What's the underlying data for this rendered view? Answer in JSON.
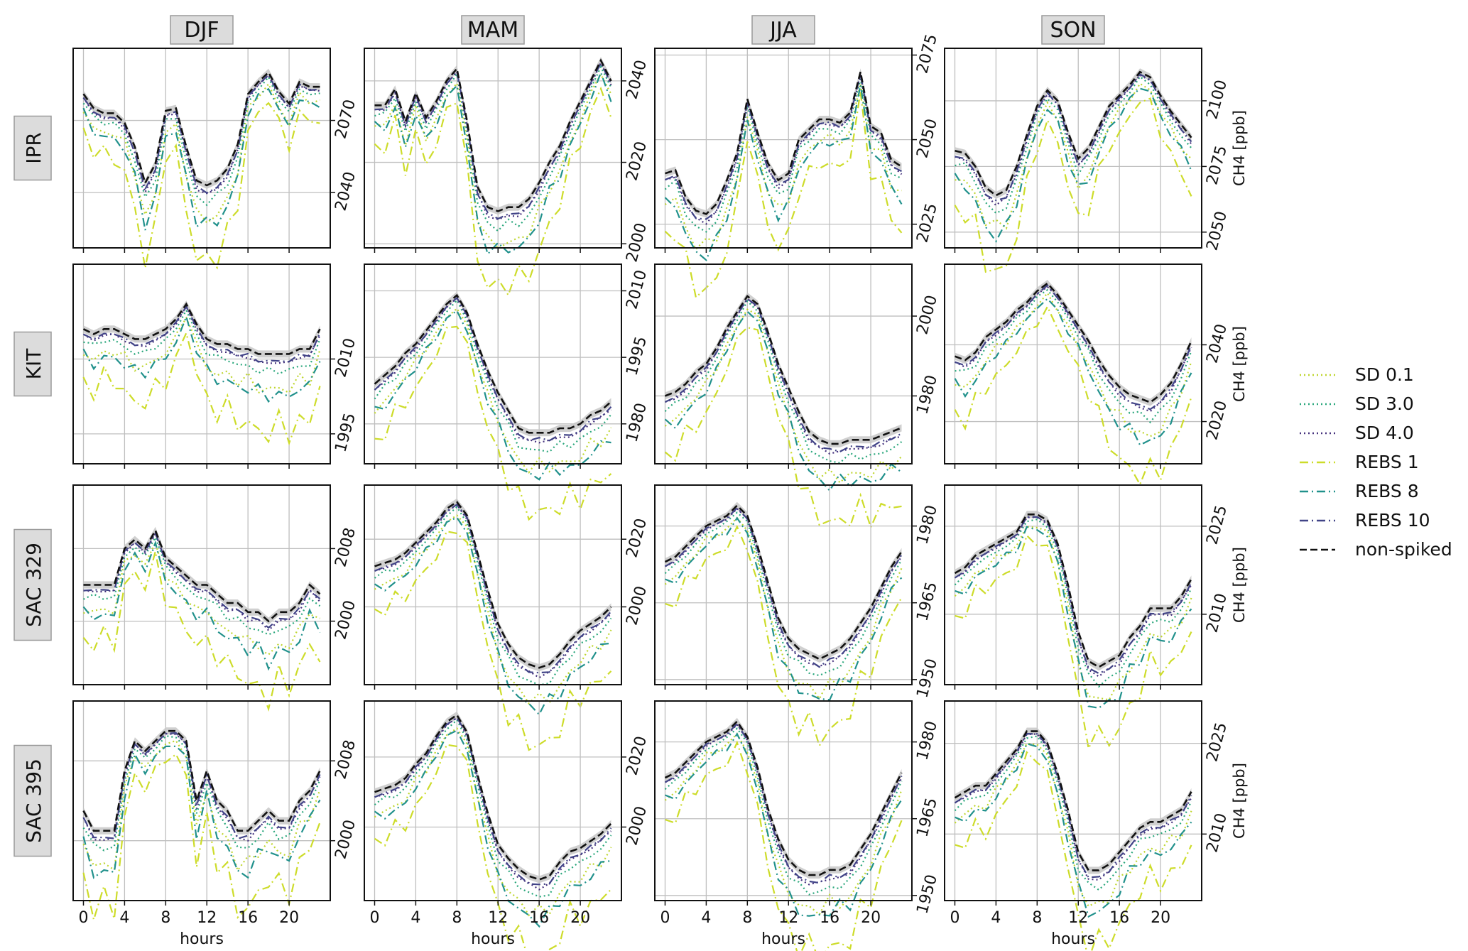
{
  "seasons": [
    "DJF",
    "MAM",
    "JJA",
    "SON"
  ],
  "sites": [
    "IPR",
    "KIT",
    "SAC 329",
    "SAC 395"
  ],
  "x_ticks": [
    "0",
    "4",
    "8",
    "12",
    "16",
    "20"
  ],
  "xlabel": "hours",
  "ylabel": "CH4 [ppb]",
  "legend": {
    "position": "right",
    "items": [
      {
        "label": "SD 0.1",
        "color": "#bfd630",
        "dash": "dotted"
      },
      {
        "label": "SD 3.0",
        "color": "#2aa77c",
        "dash": "dotted"
      },
      {
        "label": "SD 4.0",
        "color": "#46327e",
        "dash": "dotted"
      },
      {
        "label": "REBS 1",
        "color": "#cddc2a",
        "dash": "dashdot"
      },
      {
        "label": "REBS 8",
        "color": "#21918c",
        "dash": "dashdot"
      },
      {
        "label": "REBS 10",
        "color": "#414487",
        "dash": "dashdot"
      },
      {
        "label": "non-spiked",
        "color": "#111111",
        "dash": "dashed"
      }
    ]
  },
  "chart_data": {
    "type": "line",
    "xlabel": "hours",
    "ylabel": "CH4 [ppb]",
    "x": [
      0,
      1,
      2,
      3,
      4,
      5,
      6,
      7,
      8,
      9,
      10,
      11,
      12,
      13,
      14,
      15,
      16,
      17,
      18,
      19,
      20,
      21,
      22,
      23
    ],
    "xlim": [
      -1,
      24
    ],
    "uncertainty_band": "grey shading around non-spiked",
    "panels": [
      {
        "site": "IPR",
        "season": "DJF",
        "ylim": [
          2017,
          2100
        ],
        "yticks": [
          2040,
          2070
        ],
        "nonspiked": [
          2081,
          2075,
          2073,
          2073,
          2069,
          2059,
          2044,
          2052,
          2074,
          2075,
          2059,
          2045,
          2043,
          2045,
          2050,
          2060,
          2081,
          2086,
          2090,
          2082,
          2077,
          2086,
          2084,
          2084
        ]
      },
      {
        "site": "IPR",
        "season": "MAM",
        "ylim": [
          1999,
          2048
        ],
        "yticks": [
          2000,
          2020,
          2040
        ],
        "nonspiked": [
          2034,
          2034,
          2038,
          2030,
          2037,
          2031,
          2035,
          2040,
          2043,
          2030,
          2014,
          2009,
          2008,
          2009,
          2009,
          2011,
          2015,
          2020,
          2024,
          2030,
          2035,
          2040,
          2045,
          2040
        ]
      },
      {
        "site": "IPR",
        "season": "JJA",
        "ylim": [
          2018,
          2077
        ],
        "yticks": [
          2025,
          2050,
          2075
        ],
        "nonspiked": [
          2040,
          2041,
          2033,
          2029,
          2028,
          2031,
          2038,
          2046,
          2062,
          2052,
          2043,
          2038,
          2040,
          2050,
          2053,
          2056,
          2056,
          2055,
          2058,
          2070,
          2054,
          2052,
          2044,
          2042
        ]
      },
      {
        "site": "IPR",
        "season": "SON",
        "ylim": [
          2044,
          2120
        ],
        "yticks": [
          2050,
          2075,
          2100
        ],
        "nonspiked": [
          2081,
          2080,
          2075,
          2067,
          2064,
          2066,
          2075,
          2087,
          2098,
          2104,
          2100,
          2088,
          2078,
          2082,
          2090,
          2098,
          2102,
          2106,
          2111,
          2109,
          2102,
          2096,
          2091,
          2086
        ]
      },
      {
        "site": "KIT",
        "season": "DJF",
        "ylim": [
          1989,
          2029
        ],
        "yticks": [
          1995,
          2010
        ],
        "nonspiked": [
          2016,
          2015,
          2016,
          2016,
          2015,
          2014,
          2014,
          2015,
          2016,
          2018,
          2021,
          2017,
          2014,
          2013,
          2013,
          2012,
          2012,
          2011,
          2011,
          2011,
          2011,
          2012,
          2012,
          2016
        ]
      },
      {
        "site": "KIT",
        "season": "MAM",
        "ylim": [
          1971,
          2016
        ],
        "yticks": [
          1980,
          1995,
          2010
        ],
        "nonspiked": [
          1989,
          1991,
          1993,
          1996,
          1998,
          2001,
          2004,
          2007,
          2009,
          2005,
          1998,
          1992,
          1987,
          1983,
          1979,
          1978,
          1978,
          1978,
          1979,
          1979,
          1980,
          1982,
          1983,
          1985
        ]
      },
      {
        "site": "KIT",
        "season": "JJA",
        "ylim": [
          1963,
          2013
        ],
        "yticks": [
          1980,
          2000
        ],
        "nonspiked": [
          1980,
          1981,
          1983,
          1986,
          1988,
          1992,
          1997,
          2001,
          2005,
          2003,
          1996,
          1988,
          1982,
          1976,
          1971,
          1969,
          1968,
          1968,
          1969,
          1969,
          1969,
          1970,
          1971,
          1972
        ]
      },
      {
        "site": "KIT",
        "season": "SON",
        "ylim": [
          2009,
          2061
        ],
        "yticks": [
          2020,
          2040
        ],
        "nonspiked": [
          2037,
          2036,
          2038,
          2042,
          2044,
          2046,
          2049,
          2051,
          2054,
          2056,
          2053,
          2049,
          2045,
          2041,
          2036,
          2032,
          2029,
          2027,
          2026,
          2025,
          2027,
          2030,
          2035,
          2041
        ]
      },
      {
        "site": "SAC 329",
        "season": "DJF",
        "ylim": [
          1993,
          2015
        ],
        "yticks": [
          2000,
          2008
        ],
        "nonspiked": [
          2004,
          2004,
          2004,
          2004,
          2008,
          2009,
          2008,
          2010,
          2007,
          2006,
          2005,
          2004,
          2004,
          2003,
          2002,
          2002,
          2001,
          2001,
          2000,
          2001,
          2001,
          2002,
          2004,
          2003
        ]
      },
      {
        "site": "SAC 329",
        "season": "MAM",
        "ylim": [
          1977,
          2036
        ],
        "yticks": [
          2000,
          2020
        ],
        "nonspiked": [
          2012,
          2013,
          2014,
          2016,
          2019,
          2022,
          2025,
          2029,
          2031,
          2027,
          2016,
          2005,
          1995,
          1989,
          1985,
          1983,
          1982,
          1983,
          1986,
          1990,
          1993,
          1995,
          1997,
          2000
        ]
      },
      {
        "site": "SAC 329",
        "season": "JJA",
        "ylim": [
          1949,
          1988
        ],
        "yticks": [
          1950,
          1965,
          1980
        ],
        "nonspiked": [
          1973,
          1974,
          1976,
          1978,
          1980,
          1981,
          1982,
          1984,
          1982,
          1976,
          1969,
          1962,
          1958,
          1956,
          1955,
          1954,
          1955,
          1956,
          1958,
          1961,
          1964,
          1968,
          1972,
          1975
        ]
      },
      {
        "site": "SAC 329",
        "season": "SON",
        "ylim": [
          1998,
          2032
        ],
        "yticks": [
          2010,
          2025
        ],
        "nonspiked": [
          2017,
          2018,
          2020,
          2021,
          2022,
          2023,
          2024,
          2027,
          2027,
          2026,
          2022,
          2015,
          2007,
          2002,
          2001,
          2002,
          2003,
          2006,
          2008,
          2011,
          2011,
          2011,
          2013,
          2016
        ]
      },
      {
        "site": "SAC 395",
        "season": "DJF",
        "ylim": [
          1994,
          2014
        ],
        "yticks": [
          2000,
          2008
        ],
        "nonspiked": [
          2003,
          2001,
          2001,
          2001,
          2007,
          2010,
          2009,
          2010,
          2011,
          2011,
          2010,
          2004,
          2007,
          2004,
          2003,
          2001,
          2001,
          2002,
          2003,
          2002,
          2002,
          2004,
          2005,
          2007
        ]
      },
      {
        "site": "SAC 395",
        "season": "MAM",
        "ylim": [
          1979,
          2036
        ],
        "yticks": [
          2000,
          2020
        ],
        "nonspiked": [
          2010,
          2011,
          2012,
          2014,
          2018,
          2021,
          2026,
          2030,
          2032,
          2027,
          2015,
          2004,
          1995,
          1991,
          1988,
          1986,
          1985,
          1986,
          1990,
          1993,
          1994,
          1996,
          1998,
          2001
        ]
      },
      {
        "site": "SAC 395",
        "season": "JJA",
        "ylim": [
          1949,
          1988
        ],
        "yticks": [
          1950,
          1965,
          1980
        ],
        "nonspiked": [
          1973,
          1974,
          1976,
          1978,
          1980,
          1981,
          1982,
          1984,
          1981,
          1975,
          1967,
          1961,
          1957,
          1955,
          1954,
          1954,
          1955,
          1955,
          1956,
          1959,
          1962,
          1966,
          1970,
          1974
        ]
      },
      {
        "site": "SAC 395",
        "season": "SON",
        "ylim": [
          1999,
          2032
        ],
        "yticks": [
          2010,
          2025
        ],
        "nonspiked": [
          2016,
          2017,
          2018,
          2018,
          2020,
          2022,
          2024,
          2027,
          2027,
          2025,
          2020,
          2014,
          2007,
          2004,
          2004,
          2005,
          2007,
          2009,
          2011,
          2012,
          2012,
          2013,
          2014,
          2017
        ]
      }
    ]
  }
}
